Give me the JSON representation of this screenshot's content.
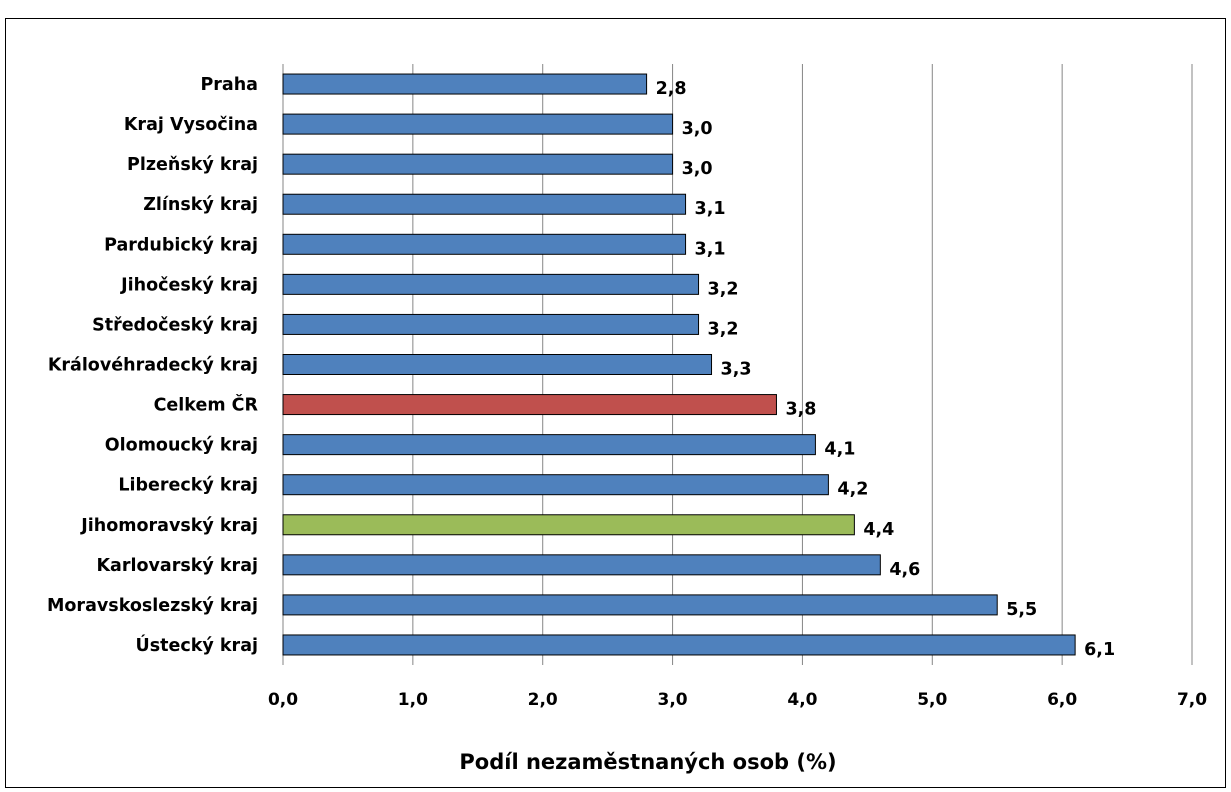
{
  "chart_data": {
    "type": "bar",
    "orientation": "horizontal",
    "title": "",
    "xlabel": "Podíl nezaměstnaných osob (%)",
    "ylabel": "",
    "xlim": [
      0,
      7
    ],
    "x_ticks": [
      "0,0",
      "1,0",
      "2,0",
      "3,0",
      "4,0",
      "5,0",
      "6,0",
      "7,0"
    ],
    "grid": "vertical",
    "legend": "none",
    "categories": [
      "Praha",
      "Kraj Vysočina",
      "Plzeňský kraj",
      "Zlínský kraj",
      "Pardubický kraj",
      "Jihočeský kraj",
      "Středočeský kraj",
      "Královéhradecký kraj",
      "Celkem ČR",
      "Olomoucký kraj",
      "Liberecký kraj",
      "Jihomoravský kraj",
      "Karlovarský kraj",
      "Moravskoslezský kraj",
      "Ústecký kraj"
    ],
    "values": [
      2.8,
      3.0,
      3.0,
      3.1,
      3.1,
      3.2,
      3.2,
      3.3,
      3.8,
      4.1,
      4.2,
      4.4,
      4.6,
      5.5,
      6.1
    ],
    "value_labels": [
      "2,8",
      "3,0",
      "3,0",
      "3,1",
      "3,1",
      "3,2",
      "3,2",
      "3,3",
      "3,8",
      "4,1",
      "4,2",
      "4,4",
      "4,6",
      "5,5",
      "6,1"
    ],
    "bar_colors": [
      "#4f81bd",
      "#4f81bd",
      "#4f81bd",
      "#4f81bd",
      "#4f81bd",
      "#4f81bd",
      "#4f81bd",
      "#4f81bd",
      "#c0504d",
      "#4f81bd",
      "#4f81bd",
      "#9bbb59",
      "#4f81bd",
      "#4f81bd",
      "#4f81bd"
    ]
  }
}
